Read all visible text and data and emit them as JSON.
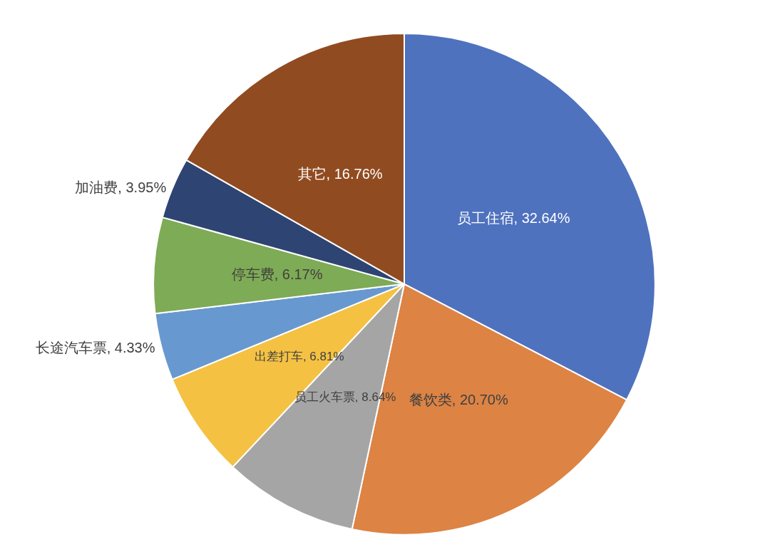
{
  "chart_data": {
    "type": "pie",
    "categories": [
      "员工住宿",
      "餐饮类",
      "员工火车票",
      "出差打车",
      "长途汽车票",
      "停车费",
      "加油费",
      "其它"
    ],
    "values": [
      32.64,
      20.7,
      8.64,
      6.81,
      4.33,
      6.17,
      3.95,
      16.76
    ],
    "value_labels": [
      "32.64%",
      "20.70%",
      "8.64%",
      "6.81%",
      "4.33%",
      "6.17%",
      "3.95%",
      "16.76%"
    ],
    "colors": [
      "#4f72be",
      "#dd8344",
      "#a5a5a5",
      "#f4c143",
      "#6898d0",
      "#7eab55",
      "#2e4473",
      "#914b20"
    ],
    "legend": false
  }
}
